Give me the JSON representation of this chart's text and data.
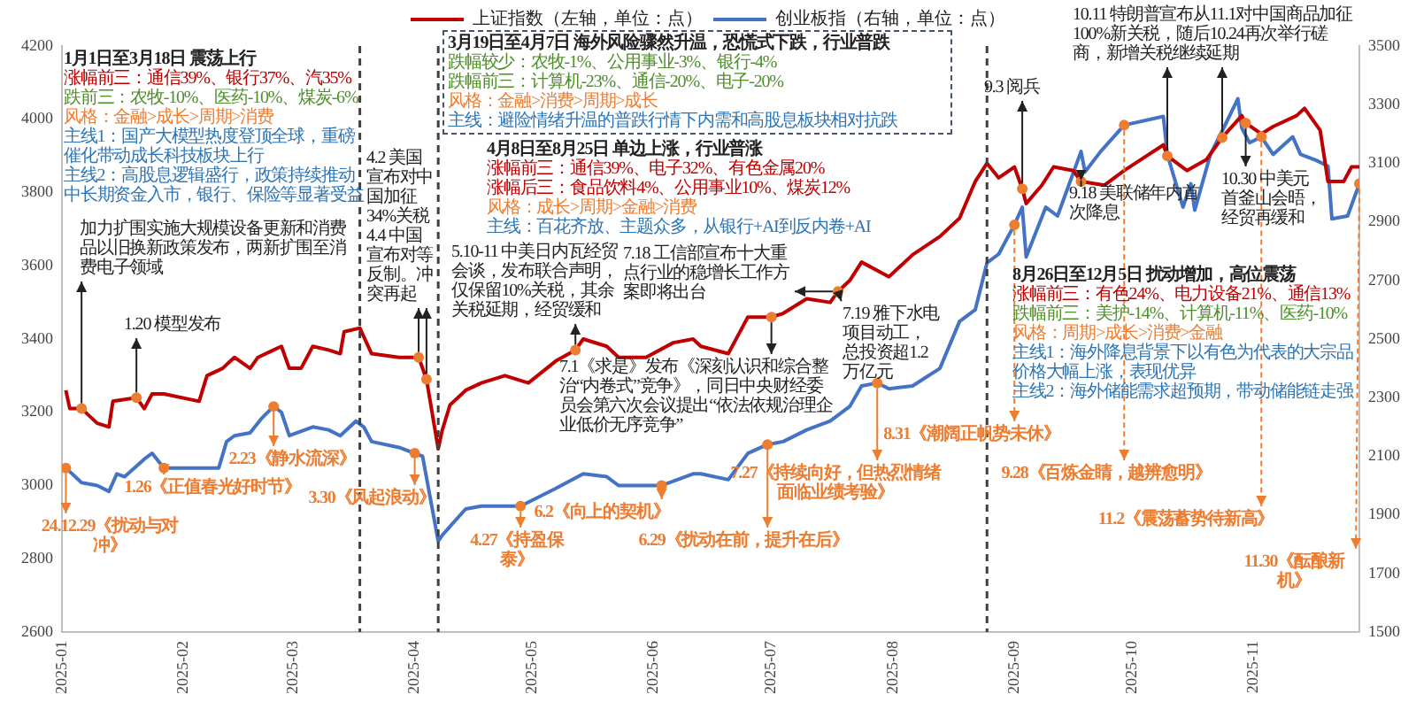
{
  "chart_data": {
    "type": "line",
    "legend": "top",
    "xlim": [
      "2025-01-01",
      "2025-11-28"
    ],
    "xticks": [
      "2025-01",
      "2025-02",
      "2025-03",
      "2025-04",
      "2025-05",
      "2025-06",
      "2025-07",
      "2025-08",
      "2025-09",
      "2025-10",
      "2025-11"
    ],
    "ylim": [
      2600,
      4200
    ],
    "yticks": [
      2600,
      2800,
      3000,
      3200,
      3400,
      3600,
      3800,
      4000,
      4200
    ],
    "y2lim": [
      1500,
      3500
    ],
    "y2ticks": [
      1500,
      1700,
      1900,
      2100,
      2300,
      2500,
      2700,
      2900,
      3100,
      3300,
      3500
    ],
    "ref_lines": [
      {
        "axis": "x",
        "value": "2025-03-18",
        "color": "#404040",
        "line_style": "dashed"
      },
      {
        "axis": "x",
        "value": "2025-04-07",
        "color": "#404040",
        "line_style": "dashed"
      },
      {
        "axis": "x",
        "value": "2025-08-25",
        "color": "#404040",
        "line_style": "dashed"
      }
    ],
    "series": [
      {
        "name": "上证指数（左轴，单位：点）",
        "color": "#c00000",
        "x": [
          "2025-01-02",
          "2025-01-03",
          "2025-01-06",
          "2025-01-10",
          "2025-01-13",
          "2025-01-14",
          "2025-01-20",
          "2025-01-22",
          "2025-01-24",
          "2025-01-27",
          "2025-02-05",
          "2025-02-07",
          "2025-02-11",
          "2025-02-14",
          "2025-02-18",
          "2025-02-20",
          "2025-02-24",
          "2025-02-26",
          "2025-02-28",
          "2025-03-03",
          "2025-03-06",
          "2025-03-10",
          "2025-03-13",
          "2025-03-14",
          "2025-03-18",
          "2025-03-21",
          "2025-03-28",
          "2025-04-01",
          "2025-04-02",
          "2025-04-04",
          "2025-04-07",
          "2025-04-08",
          "2025-04-10",
          "2025-04-14",
          "2025-04-18",
          "2025-04-24",
          "2025-04-30",
          "2025-05-07",
          "2025-05-12",
          "2025-05-14",
          "2025-05-20",
          "2025-05-23",
          "2025-05-30",
          "2025-06-06",
          "2025-06-11",
          "2025-06-13",
          "2025-06-20",
          "2025-06-25",
          "2025-07-01",
          "2025-07-04",
          "2025-07-10",
          "2025-07-16",
          "2025-07-18",
          "2025-07-21",
          "2025-07-24",
          "2025-07-31",
          "2025-08-06",
          "2025-08-13",
          "2025-08-18",
          "2025-08-22",
          "2025-08-25",
          "2025-08-28",
          "2025-09-01",
          "2025-09-03",
          "2025-09-04",
          "2025-09-08",
          "2025-09-11",
          "2025-09-16",
          "2025-09-18",
          "2025-09-24",
          "2025-09-29",
          "2025-10-09",
          "2025-10-10",
          "2025-10-15",
          "2025-10-20",
          "2025-10-24",
          "2025-10-29",
          "2025-10-30",
          "2025-11-03",
          "2025-11-06",
          "2025-11-12",
          "2025-11-14",
          "2025-11-18",
          "2025-11-20",
          "2025-11-24",
          "2025-11-26",
          "2025-11-28"
        ],
        "values": [
          3260,
          3210,
          3210,
          3170,
          3160,
          3230,
          3240,
          3210,
          3250,
          3250,
          3230,
          3300,
          3320,
          3350,
          3320,
          3350,
          3370,
          3380,
          3320,
          3320,
          3380,
          3370,
          3360,
          3420,
          3430,
          3360,
          3350,
          3350,
          3350,
          3290,
          3100,
          3150,
          3220,
          3260,
          3280,
          3300,
          3280,
          3340,
          3370,
          3400,
          3380,
          3350,
          3350,
          3390,
          3400,
          3380,
          3360,
          3460,
          3460,
          3470,
          3510,
          3500,
          3530,
          3560,
          3610,
          3570,
          3630,
          3680,
          3730,
          3830,
          3880,
          3840,
          3870,
          3810,
          3770,
          3820,
          3870,
          3860,
          3830,
          3820,
          3860,
          3930,
          3900,
          3860,
          3890,
          3950,
          4010,
          3990,
          3960,
          3980,
          4010,
          4030,
          3970,
          3830,
          3830,
          3870,
          3870
        ]
      },
      {
        "name": "创业板指（右轴，单位：点）",
        "color": "#4472c4",
        "axis": "y2",
        "x": [
          "2025-01-02",
          "2025-01-06",
          "2025-01-10",
          "2025-01-13",
          "2025-01-15",
          "2025-01-17",
          "2025-01-22",
          "2025-01-24",
          "2025-01-27",
          "2025-02-05",
          "2025-02-10",
          "2025-02-12",
          "2025-02-14",
          "2025-02-18",
          "2025-02-21",
          "2025-02-24",
          "2025-02-26",
          "2025-02-28",
          "2025-03-06",
          "2025-03-10",
          "2025-03-13",
          "2025-03-17",
          "2025-03-19",
          "2025-03-21",
          "2025-03-28",
          "2025-04-01",
          "2025-04-03",
          "2025-04-07",
          "2025-04-08",
          "2025-04-14",
          "2025-04-18",
          "2025-04-24",
          "2025-04-28",
          "2025-05-07",
          "2025-05-14",
          "2025-05-20",
          "2025-05-23",
          "2025-05-30",
          "2025-06-03",
          "2025-06-11",
          "2025-06-13",
          "2025-06-20",
          "2025-06-25",
          "2025-06-30",
          "2025-07-04",
          "2025-07-10",
          "2025-07-16",
          "2025-07-21",
          "2025-07-24",
          "2025-07-28",
          "2025-07-31",
          "2025-08-06",
          "2025-08-13",
          "2025-08-18",
          "2025-08-22",
          "2025-08-25",
          "2025-08-28",
          "2025-09-01",
          "2025-09-03",
          "2025-09-04",
          "2025-09-09",
          "2025-09-12",
          "2025-09-18",
          "2025-09-19",
          "2025-09-23",
          "2025-09-29",
          "2025-10-09",
          "2025-10-10",
          "2025-10-14",
          "2025-10-16",
          "2025-10-17",
          "2025-10-21",
          "2025-10-24",
          "2025-10-28",
          "2025-10-29",
          "2025-10-31",
          "2025-11-03",
          "2025-11-06",
          "2025-11-11",
          "2025-11-13",
          "2025-11-17",
          "2025-11-20",
          "2025-11-21",
          "2025-11-25",
          "2025-11-28"
        ],
        "values": [
          2060,
          2010,
          2000,
          1980,
          2040,
          2030,
          2090,
          2110,
          2060,
          2060,
          2060,
          2150,
          2170,
          2180,
          2230,
          2270,
          2250,
          2170,
          2200,
          2190,
          2170,
          2220,
          2200,
          2150,
          2130,
          2110,
          2100,
          1810,
          1830,
          1920,
          1930,
          1930,
          1930,
          1990,
          2040,
          2030,
          2000,
          2000,
          2000,
          2040,
          2040,
          2020,
          2110,
          2140,
          2150,
          2190,
          2220,
          2270,
          2340,
          2350,
          2330,
          2340,
          2400,
          2560,
          2600,
          2760,
          2790,
          2890,
          2950,
          2780,
          2950,
          2920,
          3140,
          3070,
          3140,
          3230,
          3260,
          3130,
          2950,
          3030,
          2940,
          3130,
          3210,
          3320,
          3220,
          3170,
          3190,
          3130,
          3190,
          3130,
          3110,
          3090,
          2910,
          2920,
          3030
        ]
      },
      {
        "type": "scatter",
        "color": "#ed7d31",
        "x": [
          "2025-01-06",
          "2025-01-20",
          "2025-04-02",
          "2025-04-04",
          "2025-05-12",
          "2025-07-01",
          "2025-07-18",
          "2025-09-03",
          "2025-09-18",
          "2025-10-10",
          "2025-10-24",
          "2025-10-30"
        ],
        "values": [
          3210,
          3240,
          3350,
          3290,
          3370,
          3460,
          3530,
          3810,
          3830,
          3900,
          3950,
          3990
        ]
      },
      {
        "type": "scatter",
        "color": "#ed7d31",
        "axis": "y2",
        "x": [
          "2025-01-02",
          "2025-01-27",
          "2025-02-24",
          "2025-04-01",
          "2025-04-28",
          "2025-06-03",
          "2025-06-30",
          "2025-07-28",
          "2025-09-01",
          "2025-09-29",
          "2025-11-03",
          "2025-11-28"
        ],
        "values": [
          2060,
          2060,
          2270,
          2110,
          1930,
          2000,
          2140,
          2350,
          2890,
          3230,
          3190,
          3030
        ]
      }
    ],
    "annotations": [
      "1月1日至3月18日 震荡上行",
      "涨幅前三：通信39%、银行37%、汽35%",
      "跌前三：农牧-10%、医药-10%、煤炭-6%",
      "风格：金融>成长>周期>消费",
      "主线1：国产大模型热度登顶全球，重磅催化带动成长科技板块上行",
      "主线2：高股息逻辑盛行，政策持续推动中长期资金入市，银行、保险等显著受益",
      "3月19日至4月7日 海外风险骤然升温，恐慌式下跌，行业普跌",
      "跌幅较少：农牧-1%、公用事业-3%、银行-4%",
      "跌幅前三：计算机-23%、通信-20%、电子-20%",
      "风格：金融>消费>周期>成长",
      "主线：避险情绪升温的普跌行情下内需和高股息板块相对抗跌",
      "4月8日至8月25日 单边上涨，行业普涨",
      "涨幅前三：通信39%、电子32%、有色金属20%",
      "涨幅后三：食品饮料4%、公用事业10%、煤炭12%",
      "风格：成长>周期>金融>消费",
      "主线：百花齐放、主题众多，从银行+AI到反内卷+AI",
      "8月26日至12月5日 扰动增加，高位震荡",
      "涨幅前三：有色24%、电力设备21%、通信13%",
      "跌幅前三：美护-14%、计算机-11%、医药-10%",
      "风格：周期>成长>消费>金融",
      "主线1：海外降息背景下以有色为代表的大宗品价格大幅上涨，表现优异",
      "主线2：海外储能需求超预期，带动储能链走强",
      {
        "text": "加力扩围实施大规模设备更新和消费品以旧换新政策发布，两新扩围至消费电子领域",
        "x": "2025-01-06",
        "y": 3210
      },
      {
        "text": "1.20 模型发布",
        "x": "2025-01-20",
        "y": 3240
      },
      {
        "text": "4.2 美国宣布对中国加征34%关税 4.4 中国宣布对等反制。冲突再起",
        "x": "2025-04-02",
        "y": 3350
      },
      {
        "text": "5.10-11 中美日内瓦经贸会谈，发布联合声明，仅保留10%关税，其余关税延期，经贸缓和",
        "x": "2025-05-12",
        "y": 3370
      },
      {
        "text": "7.1《求是》发布《深刻认识和综合整治“内卷式”竞争》，同日中央财经委员会第六次会议提出“依法依规治理企业低价无序竞争”",
        "x": "2025-07-01",
        "y": 3460
      },
      {
        "text": "7.18 工信部宣布十大重点行业的稳增长工作方案即将出台",
        "x": "2025-07-18",
        "y": 3530
      },
      {
        "text": "7.19 雅下水电项目动工，总投资超1.2万亿元",
        "x": "2025-07-18",
        "y": 3530
      },
      {
        "text": "9.3 阅兵",
        "x": "2025-09-03",
        "y": 3810
      },
      {
        "text": "9.18 美联储年内首次降息",
        "x": "2025-09-18",
        "y": 3830
      },
      {
        "text": "10.11 特朗普宣布从11.1对中国商品加征100%新关税，随后10.24再次举行磋商，新增关税继续延期",
        "x": "2025-10-10",
        "y": 3900
      },
      {
        "text": "10.30 中美元首釜山会晤，经贸再缓和",
        "x": "2025-10-30",
        "y": 3990
      },
      "24.12.29《扰动与对冲》",
      "1.26《正值春光好时节》",
      "2.23《静水流深》",
      "3.30《风起浪动》",
      "4.27《持盈保泰》",
      "6.2《向上的契机》",
      "6.29《扰动在前，提升在后》",
      "7.27《持续向好，但热烈情绪面临业绩考验》",
      "8.31《潮阔正帆势未休》",
      "9.28《百炼金睛，越辨愈明》",
      "11.2《震荡蓄势待新高》",
      "11.30《酝酿新机》"
    ]
  }
}
